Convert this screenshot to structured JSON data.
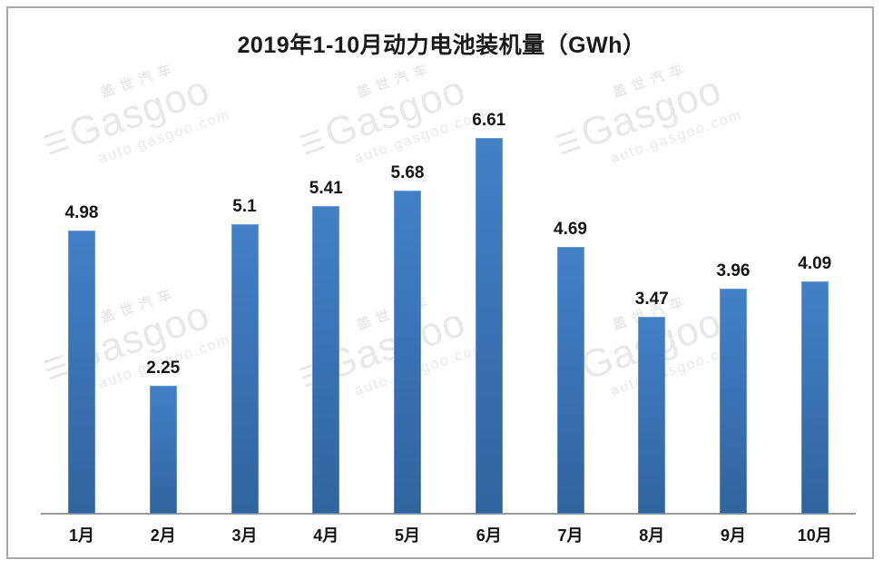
{
  "chart_data": {
    "type": "bar",
    "title": "2019年1-10月动力电池装机量（GWh）",
    "categories": [
      "1月",
      "2月",
      "3月",
      "4月",
      "5月",
      "6月",
      "7月",
      "8月",
      "9月",
      "10月"
    ],
    "values": [
      4.98,
      2.25,
      5.1,
      5.41,
      5.68,
      6.61,
      4.69,
      3.47,
      3.96,
      4.09
    ],
    "value_labels": [
      "4.98",
      "2.25",
      "5.1",
      "5.41",
      "5.68",
      "6.61",
      "4.69",
      "3.47",
      "3.96",
      "4.09"
    ],
    "xlabel": "",
    "ylabel": "",
    "ylim": [
      0,
      7
    ],
    "grid": false,
    "legend": "none",
    "colors": {
      "bar_top": "#4280C7",
      "bar_bottom": "#30649F",
      "axis": "#9B9B9B",
      "frame_border": "#A8A8A8",
      "label_text": "#141414",
      "watermark": "#E8E8E8"
    }
  },
  "watermark": {
    "brand_cn": "盖世汽车",
    "logo_icon": "☰",
    "brand_en": "Gasgoo",
    "url": "auto.gasgoo.com"
  }
}
